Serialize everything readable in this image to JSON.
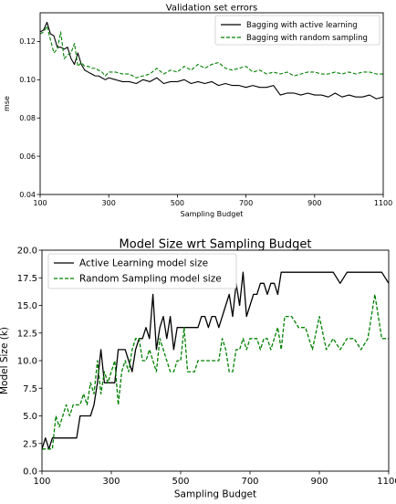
{
  "chart_data": [
    {
      "type": "line",
      "title": "Validation set errors",
      "xlabel": "Sampling Budget",
      "ylabel": "mse",
      "xlim": [
        100,
        1100
      ],
      "ylim": [
        0.04,
        0.135
      ],
      "xticks": [
        100,
        300,
        500,
        700,
        900,
        1100
      ],
      "yticks": [
        0.04,
        0.06,
        0.08,
        0.1,
        0.12
      ],
      "ytick_labels": [
        "0.04",
        "0.06",
        "0.08",
        "0.10",
        "0.12"
      ],
      "legend_position": "top-right",
      "series": [
        {
          "name": "Bagging with active learning",
          "color": "#000000",
          "style": "solid",
          "x": [
            100,
            110,
            120,
            130,
            140,
            150,
            160,
            170,
            180,
            190,
            200,
            210,
            220,
            230,
            240,
            250,
            260,
            270,
            280,
            290,
            300,
            320,
            340,
            360,
            380,
            400,
            420,
            440,
            460,
            480,
            500,
            520,
            540,
            560,
            580,
            600,
            620,
            640,
            660,
            680,
            700,
            720,
            740,
            760,
            780,
            800,
            820,
            840,
            860,
            880,
            900,
            920,
            940,
            960,
            980,
            1000,
            1020,
            1040,
            1060,
            1080,
            1100
          ],
          "y": [
            0.125,
            0.126,
            0.13,
            0.124,
            0.123,
            0.117,
            0.117,
            0.116,
            0.117,
            0.111,
            0.108,
            0.114,
            0.108,
            0.105,
            0.104,
            0.103,
            0.102,
            0.102,
            0.101,
            0.1,
            0.101,
            0.1,
            0.099,
            0.099,
            0.098,
            0.1,
            0.099,
            0.101,
            0.098,
            0.099,
            0.099,
            0.1,
            0.098,
            0.099,
            0.098,
            0.099,
            0.097,
            0.098,
            0.097,
            0.097,
            0.096,
            0.097,
            0.096,
            0.096,
            0.097,
            0.092,
            0.093,
            0.093,
            0.092,
            0.093,
            0.092,
            0.092,
            0.091,
            0.093,
            0.091,
            0.092,
            0.091,
            0.091,
            0.092,
            0.09,
            0.091
          ]
        },
        {
          "name": "Bagging with random sampling",
          "color": "#008000",
          "style": "dashed",
          "x": [
            100,
            110,
            120,
            130,
            140,
            150,
            160,
            170,
            180,
            190,
            200,
            210,
            220,
            230,
            240,
            250,
            260,
            270,
            280,
            290,
            300,
            320,
            340,
            360,
            380,
            400,
            420,
            440,
            460,
            480,
            500,
            520,
            540,
            560,
            580,
            600,
            620,
            640,
            660,
            680,
            700,
            720,
            740,
            760,
            780,
            800,
            820,
            840,
            860,
            880,
            900,
            920,
            940,
            960,
            980,
            1000,
            1020,
            1040,
            1060,
            1080,
            1100
          ],
          "y": [
            0.124,
            0.125,
            0.128,
            0.121,
            0.114,
            0.116,
            0.125,
            0.111,
            0.113,
            0.114,
            0.119,
            0.107,
            0.109,
            0.107,
            0.107,
            0.106,
            0.106,
            0.105,
            0.104,
            0.102,
            0.104,
            0.104,
            0.103,
            0.103,
            0.101,
            0.102,
            0.103,
            0.106,
            0.103,
            0.105,
            0.104,
            0.107,
            0.105,
            0.108,
            0.106,
            0.108,
            0.109,
            0.106,
            0.105,
            0.106,
            0.107,
            0.104,
            0.105,
            0.103,
            0.104,
            0.103,
            0.104,
            0.102,
            0.103,
            0.104,
            0.104,
            0.103,
            0.103,
            0.104,
            0.103,
            0.104,
            0.103,
            0.104,
            0.104,
            0.103,
            0.103
          ]
        }
      ]
    },
    {
      "type": "line",
      "title": "Model Size wrt Sampling Budget",
      "xlabel": "Sampling Budget",
      "ylabel": "Model Size (k)",
      "xlim": [
        100,
        1100
      ],
      "ylim": [
        0.0,
        20.0
      ],
      "xticks": [
        100,
        300,
        500,
        700,
        900,
        1100
      ],
      "yticks": [
        0.0,
        2.5,
        5.0,
        7.5,
        10.0,
        12.5,
        15.0,
        17.5,
        20.0
      ],
      "ytick_labels": [
        "0.0",
        "2.5",
        "5.0",
        "7.5",
        "10.0",
        "12.5",
        "15.0",
        "17.5",
        "20.0"
      ],
      "legend_position": "top-left",
      "series": [
        {
          "name": "Active Learning model size",
          "color": "#000000",
          "style": "solid",
          "x": [
            100,
            110,
            120,
            130,
            140,
            150,
            160,
            170,
            180,
            190,
            200,
            210,
            220,
            230,
            240,
            250,
            260,
            270,
            280,
            290,
            300,
            310,
            320,
            330,
            340,
            350,
            360,
            370,
            380,
            390,
            400,
            410,
            420,
            430,
            440,
            450,
            460,
            470,
            480,
            490,
            500,
            510,
            520,
            530,
            540,
            550,
            560,
            570,
            580,
            590,
            600,
            610,
            620,
            630,
            640,
            650,
            660,
            670,
            680,
            690,
            700,
            710,
            720,
            730,
            740,
            750,
            760,
            770,
            780,
            790,
            800,
            820,
            840,
            860,
            880,
            900,
            920,
            940,
            960,
            980,
            1000,
            1020,
            1040,
            1060,
            1080,
            1100
          ],
          "y": [
            2,
            3,
            2,
            3,
            3,
            3,
            3,
            3,
            3,
            3,
            3,
            5,
            5,
            5,
            5,
            6,
            8,
            11,
            8,
            8,
            8,
            8,
            11,
            11,
            11,
            10,
            9,
            11,
            12,
            12,
            13,
            12,
            16,
            11,
            13,
            14,
            12,
            14,
            11,
            13,
            13,
            13,
            13,
            13,
            13,
            13,
            14,
            14,
            13,
            14,
            14,
            13,
            14,
            15,
            16,
            14,
            17,
            15,
            18,
            14,
            15,
            16,
            16,
            17,
            17,
            16,
            17,
            17,
            16,
            18,
            18,
            18,
            18,
            18,
            18,
            18,
            18,
            18,
            17,
            18,
            18,
            18,
            18,
            18,
            18,
            17
          ]
        },
        {
          "name": "Random Sampling model size",
          "color": "#008000",
          "style": "dashed",
          "x": [
            100,
            110,
            120,
            130,
            140,
            150,
            160,
            170,
            180,
            190,
            200,
            210,
            220,
            230,
            240,
            250,
            260,
            270,
            280,
            290,
            300,
            310,
            320,
            330,
            340,
            350,
            360,
            370,
            380,
            390,
            400,
            410,
            420,
            430,
            440,
            450,
            460,
            470,
            480,
            490,
            500,
            510,
            520,
            530,
            540,
            550,
            560,
            570,
            580,
            590,
            600,
            610,
            620,
            630,
            640,
            650,
            660,
            670,
            680,
            690,
            700,
            710,
            720,
            730,
            740,
            750,
            760,
            770,
            780,
            790,
            800,
            820,
            840,
            860,
            880,
            900,
            920,
            940,
            960,
            980,
            1000,
            1020,
            1040,
            1060,
            1080,
            1100
          ],
          "y": [
            2,
            2,
            2,
            2,
            5,
            4,
            5,
            6,
            5,
            6,
            6,
            6,
            7,
            6,
            8,
            7,
            10,
            7,
            9,
            8,
            9,
            10,
            6,
            9,
            10,
            9,
            11,
            12,
            12,
            10,
            10,
            11,
            10,
            9,
            12,
            11,
            10,
            9,
            9,
            10,
            10,
            13,
            9,
            9,
            9,
            10,
            10,
            10,
            10,
            10,
            10,
            10,
            12,
            11,
            9,
            9,
            11,
            11,
            12,
            11,
            12,
            12,
            12,
            11,
            12,
            12,
            11,
            12,
            13,
            11,
            14,
            14,
            13,
            13,
            11,
            14,
            11,
            12,
            11,
            12,
            12,
            11,
            12,
            16,
            12,
            12
          ]
        }
      ]
    }
  ]
}
